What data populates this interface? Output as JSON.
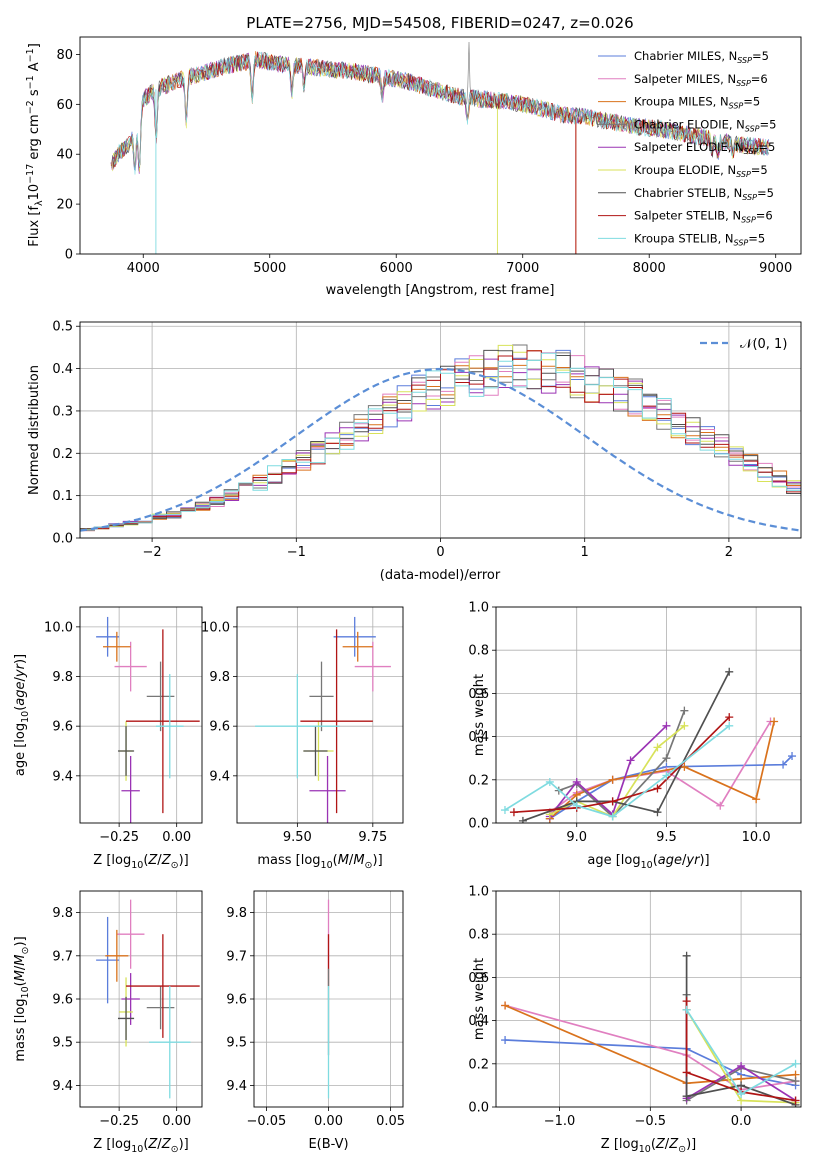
{
  "colors": {
    "chabrier_miles": "#5b7ddb",
    "salpeter_miles": "#e07fc0",
    "kroupa_miles": "#d9721c",
    "chabrier_elodie": "#777777",
    "salpeter_elodie": "#9a33b4",
    "kroupa_elodie": "#d8e25a",
    "chabrier_stelib": "#505050",
    "salpeter_stelib": "#b01515",
    "kroupa_stelib": "#7fdbe0",
    "normal": "#5b8ed6",
    "grid": "#b0b0b0"
  },
  "chart_data": [
    {
      "id": "spectrum",
      "type": "line",
      "title": "PLATE=2756, MJD=54508, FIBERID=0247, z=0.026",
      "xlabel": "wavelength [Angstrom, rest frame]",
      "ylabel": "Flux [f_λ10^-17 erg cm^-2 s^-1 A^-1]",
      "xlim": [
        3500,
        9200
      ],
      "ylim": [
        0,
        87
      ],
      "xticks": [
        4000,
        5000,
        6000,
        7000,
        8000,
        9000
      ],
      "yticks": [
        0,
        20,
        40,
        60,
        80
      ],
      "legend_position": "top-right",
      "legend": [
        {
          "label": "Chabrier MILES, N_SSP=5",
          "color": "#5b7ddb"
        },
        {
          "label": "Salpeter MILES, N_SSP=6",
          "color": "#e07fc0"
        },
        {
          "label": "Kroupa MILES, N_SSP=5",
          "color": "#d9721c"
        },
        {
          "label": "Chabrier ELODIE, N_SSP=5",
          "color": "#777777"
        },
        {
          "label": "Salpeter ELODIE, N_SSP=5",
          "color": "#9a33b4"
        },
        {
          "label": "Kroupa ELODIE, N_SSP=5",
          "color": "#d8e25a"
        },
        {
          "label": "Chabrier STELIB, N_SSP=5",
          "color": "#505050"
        },
        {
          "label": "Salpeter STELIB, N_SSP=6",
          "color": "#b01515"
        },
        {
          "label": "Kroupa STELIB, N_SSP=5",
          "color": "#7fdbe0"
        }
      ],
      "continuum": [
        [
          3740,
          35
        ],
        [
          3800,
          40
        ],
        [
          3900,
          45
        ],
        [
          3970,
          52
        ],
        [
          4000,
          62
        ],
        [
          4100,
          66
        ],
        [
          4300,
          70
        ],
        [
          4500,
          73
        ],
        [
          4700,
          76
        ],
        [
          4900,
          78
        ],
        [
          5100,
          76
        ],
        [
          5300,
          75
        ],
        [
          5500,
          74
        ],
        [
          5700,
          73
        ],
        [
          5900,
          71
        ],
        [
          6100,
          69
        ],
        [
          6300,
          66
        ],
        [
          6500,
          63
        ],
        [
          6700,
          62
        ],
        [
          6900,
          61
        ],
        [
          7100,
          59
        ],
        [
          7300,
          56
        ],
        [
          7500,
          55
        ],
        [
          7700,
          53
        ],
        [
          7900,
          51
        ],
        [
          8100,
          50
        ],
        [
          8300,
          48
        ],
        [
          8500,
          46
        ],
        [
          8700,
          44
        ],
        [
          8900,
          43
        ]
      ]
    },
    {
      "id": "residuals",
      "type": "bar",
      "xlabel": "(data-model)/error",
      "ylabel": "Normed distribution",
      "xlim": [
        -2.5,
        2.5
      ],
      "ylim": [
        0,
        0.51
      ],
      "xticks": [
        -2,
        -1,
        0,
        1,
        2
      ],
      "yticks": [
        0.0,
        0.1,
        0.2,
        0.3,
        0.4,
        0.5
      ],
      "legend_position": "top-right",
      "normal_label": "𝒩(0, 1)",
      "bin_edges_start": -2.5,
      "bin_width": 0.1,
      "reference_hist": [
        0.02,
        0.025,
        0.03,
        0.035,
        0.04,
        0.05,
        0.055,
        0.065,
        0.075,
        0.085,
        0.1,
        0.115,
        0.13,
        0.15,
        0.165,
        0.185,
        0.2,
        0.22,
        0.24,
        0.26,
        0.28,
        0.3,
        0.32,
        0.34,
        0.35,
        0.36,
        0.375,
        0.385,
        0.39,
        0.4,
        0.405,
        0.4,
        0.395,
        0.39,
        0.38,
        0.37,
        0.355,
        0.34,
        0.33,
        0.31,
        0.29,
        0.27,
        0.25,
        0.235,
        0.215,
        0.19,
        0.175,
        0.155,
        0.14,
        0.12,
        0.105,
        0.09,
        0.078,
        0.066,
        0.056,
        0.048,
        0.04,
        0.034,
        0.029,
        0.025
      ]
    },
    {
      "id": "z_age",
      "type": "scatter",
      "xlabel": "Z [log10(Z/Z☉)]",
      "ylabel": "age  [log10(age/yr)]",
      "xlim": [
        -0.42,
        0.11
      ],
      "ylim": [
        9.21,
        10.08
      ],
      "xticks": [
        -0.25,
        0.0
      ],
      "yticks": [
        9.4,
        9.6,
        9.8,
        10.0
      ],
      "points": [
        {
          "x": -0.3,
          "y": 9.96,
          "xerr": 0.05,
          "yerr": 0.08,
          "color": "#5b7ddb"
        },
        {
          "x": -0.2,
          "y": 9.84,
          "xerr": 0.07,
          "yerr": 0.1,
          "color": "#e07fc0"
        },
        {
          "x": -0.26,
          "y": 9.92,
          "xerr": 0.06,
          "yerr": 0.06,
          "color": "#d9721c"
        },
        {
          "x": -0.07,
          "y": 9.72,
          "xerr": 0.06,
          "yerr": 0.14,
          "color": "#777777"
        },
        {
          "x": -0.2,
          "y": 9.34,
          "xerr": 0.04,
          "yerr": 0.14,
          "color": "#9a33b4"
        },
        {
          "x": -0.22,
          "y": 9.5,
          "xerr": 0.03,
          "yerr": 0.12,
          "color": "#d8e25a"
        },
        {
          "x": -0.22,
          "y": 9.5,
          "xerr": 0.035,
          "yerr": 0.1,
          "color": "#505050"
        },
        {
          "x": -0.06,
          "y": 9.62,
          "xerr": 0.16,
          "yerr": 0.37,
          "color": "#b01515"
        },
        {
          "x": -0.03,
          "y": 9.6,
          "xerr": 0.06,
          "yerr": 0.21,
          "color": "#7fdbe0"
        }
      ]
    },
    {
      "id": "mass_age",
      "type": "scatter",
      "xlabel": "mass [log10(M/M☉)]",
      "ylabel": "",
      "xlim": [
        9.3,
        9.85
      ],
      "ylim": [
        9.21,
        10.08
      ],
      "xticks": [
        9.5,
        9.75
      ],
      "yticks": [
        9.4,
        9.6,
        9.8,
        10.0
      ],
      "points": [
        {
          "x": 9.69,
          "y": 9.96,
          "xerr": 0.07,
          "yerr": 0.08,
          "color": "#5b7ddb"
        },
        {
          "x": 9.75,
          "y": 9.84,
          "xerr": 0.06,
          "yerr": 0.1,
          "color": "#e07fc0"
        },
        {
          "x": 9.7,
          "y": 9.92,
          "xerr": 0.05,
          "yerr": 0.06,
          "color": "#d9721c"
        },
        {
          "x": 9.58,
          "y": 9.72,
          "xerr": 0.04,
          "yerr": 0.14,
          "color": "#777777"
        },
        {
          "x": 9.6,
          "y": 9.34,
          "xerr": 0.06,
          "yerr": 0.14,
          "color": "#9a33b4"
        },
        {
          "x": 9.57,
          "y": 9.5,
          "xerr": 0.05,
          "yerr": 0.12,
          "color": "#d8e25a"
        },
        {
          "x": 9.56,
          "y": 9.5,
          "xerr": 0.04,
          "yerr": 0.1,
          "color": "#505050"
        },
        {
          "x": 9.63,
          "y": 9.62,
          "xerr": 0.12,
          "yerr": 0.37,
          "color": "#b01515"
        },
        {
          "x": 9.5,
          "y": 9.6,
          "xerr": 0.14,
          "yerr": 0.21,
          "color": "#7fdbe0"
        }
      ]
    },
    {
      "id": "age_weight",
      "type": "line",
      "xlabel": "age  [log10(age/yr)]",
      "ylabel": "mass weight",
      "xlim": [
        8.55,
        10.25
      ],
      "ylim": [
        0,
        1.0
      ],
      "xticks": [
        9.0,
        9.5,
        10.0
      ],
      "yticks": [
        0.0,
        0.2,
        0.4,
        0.6,
        0.8,
        1.0
      ],
      "series": [
        {
          "color": "#5b7ddb",
          "x": [
            8.85,
            9.0,
            9.2,
            9.5,
            10.15,
            10.2
          ],
          "y": [
            0.02,
            0.1,
            0.2,
            0.26,
            0.27,
            0.31
          ]
        },
        {
          "color": "#e07fc0",
          "x": [
            8.85,
            9.0,
            9.2,
            9.5,
            9.8,
            10.08
          ],
          "y": [
            0.05,
            0.14,
            0.2,
            0.24,
            0.08,
            0.47
          ]
        },
        {
          "color": "#d9721c",
          "x": [
            8.85,
            9.0,
            9.2,
            9.6,
            10.0,
            10.1
          ],
          "y": [
            0.02,
            0.13,
            0.2,
            0.26,
            0.11,
            0.47
          ]
        },
        {
          "color": "#777777",
          "x": [
            8.9,
            9.0,
            9.2,
            9.5,
            9.6
          ],
          "y": [
            0.15,
            0.18,
            0.03,
            0.3,
            0.52
          ]
        },
        {
          "color": "#9a33b4",
          "x": [
            8.85,
            9.0,
            9.2,
            9.3,
            9.5
          ],
          "y": [
            0.03,
            0.19,
            0.04,
            0.29,
            0.45
          ]
        },
        {
          "color": "#d8e25a",
          "x": [
            8.85,
            9.0,
            9.2,
            9.45,
            9.6
          ],
          "y": [
            0.04,
            0.1,
            0.03,
            0.35,
            0.45
          ]
        },
        {
          "color": "#505050",
          "x": [
            8.7,
            9.0,
            9.2,
            9.45,
            9.85
          ],
          "y": [
            0.01,
            0.1,
            0.1,
            0.05,
            0.7
          ]
        },
        {
          "color": "#b01515",
          "x": [
            8.65,
            9.0,
            9.2,
            9.45,
            9.85
          ],
          "y": [
            0.05,
            0.07,
            0.1,
            0.16,
            0.49
          ]
        },
        {
          "color": "#7fdbe0",
          "x": [
            8.6,
            8.85,
            9.0,
            9.2,
            9.5,
            9.85
          ],
          "y": [
            0.06,
            0.19,
            0.08,
            0.03,
            0.22,
            0.45
          ]
        }
      ]
    },
    {
      "id": "z_mass",
      "type": "scatter",
      "xlabel": "Z [log10(Z/Z☉)]",
      "ylabel": "mass [log10(M/M☉)]",
      "xlim": [
        -0.42,
        0.11
      ],
      "ylim": [
        9.35,
        9.85
      ],
      "xticks": [
        -0.25,
        0.0
      ],
      "yticks": [
        9.4,
        9.5,
        9.6,
        9.7,
        9.8
      ],
      "points": [
        {
          "x": -0.3,
          "y": 9.69,
          "xerr": 0.05,
          "yerr": 0.1,
          "color": "#5b7ddb"
        },
        {
          "x": -0.2,
          "y": 9.75,
          "xerr": 0.06,
          "yerr": 0.08,
          "color": "#e07fc0"
        },
        {
          "x": -0.26,
          "y": 9.7,
          "xerr": 0.05,
          "yerr": 0.06,
          "color": "#d9721c"
        },
        {
          "x": -0.07,
          "y": 9.58,
          "xerr": 0.06,
          "yerr": 0.05,
          "color": "#777777"
        },
        {
          "x": -0.2,
          "y": 9.6,
          "xerr": 0.04,
          "yerr": 0.06,
          "color": "#9a33b4"
        },
        {
          "x": -0.22,
          "y": 9.57,
          "xerr": 0.03,
          "yerr": 0.08,
          "color": "#d8e25a"
        },
        {
          "x": -0.22,
          "y": 9.555,
          "xerr": 0.035,
          "yerr": 0.05,
          "color": "#505050"
        },
        {
          "x": -0.06,
          "y": 9.63,
          "xerr": 0.16,
          "yerr": 0.12,
          "color": "#b01515"
        },
        {
          "x": -0.03,
          "y": 9.5,
          "xerr": 0.09,
          "yerr": 0.13,
          "color": "#7fdbe0"
        }
      ]
    },
    {
      "id": "ebv_mass",
      "type": "scatter",
      "xlabel": "E(B-V)",
      "ylabel": "",
      "xlim": [
        -0.06,
        0.06
      ],
      "ylim": [
        9.35,
        9.85
      ],
      "xticks": [
        -0.05,
        0.0,
        0.05
      ],
      "yticks": [
        9.4,
        9.5,
        9.6,
        9.7,
        9.8
      ],
      "points": [
        {
          "x": 0.0,
          "y": 9.75,
          "xerr": 0.0,
          "yerr": 0.08,
          "color": "#e07fc0"
        },
        {
          "x": 0.0,
          "y": 9.69,
          "xerr": 0.0,
          "yerr": 0.06,
          "color": "#b01515"
        },
        {
          "x": 0.0,
          "y": 9.57,
          "xerr": 0.0,
          "yerr": 0.1,
          "color": "#777777"
        },
        {
          "x": 0.0,
          "y": 9.5,
          "xerr": 0.0,
          "yerr": 0.13,
          "color": "#7fdbe0"
        }
      ]
    },
    {
      "id": "z_weight",
      "type": "line",
      "xlabel": "Z [log10(Z/Z☉)]",
      "ylabel": "mass weight",
      "xlim": [
        -1.35,
        0.33
      ],
      "ylim": [
        0,
        1.0
      ],
      "xticks": [
        -1.0,
        -0.5,
        0.0
      ],
      "yticks": [
        0.0,
        0.2,
        0.4,
        0.6,
        0.8,
        1.0
      ],
      "series": [
        {
          "color": "#5b7ddb",
          "x": [
            -1.3,
            -0.3,
            0.0,
            0.3
          ],
          "y": [
            0.31,
            0.27,
            0.15,
            0.1
          ]
        },
        {
          "color": "#e07fc0",
          "x": [
            -1.3,
            -0.3,
            0.0,
            0.3
          ],
          "y": [
            0.47,
            0.24,
            0.08,
            0.12
          ]
        },
        {
          "color": "#d9721c",
          "x": [
            -1.3,
            -0.3,
            0.0,
            0.3
          ],
          "y": [
            0.47,
            0.11,
            0.13,
            0.15
          ]
        },
        {
          "color": "#777777",
          "x": [
            -0.3,
            -0.3,
            0.0,
            0.3
          ],
          "y": [
            0.52,
            0.03,
            0.18,
            0.12
          ]
        },
        {
          "color": "#9a33b4",
          "x": [
            -0.3,
            -0.3,
            0.0,
            0.3
          ],
          "y": [
            0.45,
            0.04,
            0.19,
            0.03
          ]
        },
        {
          "color": "#d8e25a",
          "x": [
            -0.3,
            0.0,
            0.3
          ],
          "y": [
            0.45,
            0.03,
            0.02
          ]
        },
        {
          "color": "#505050",
          "x": [
            -0.3,
            -0.3,
            0.0,
            0.3
          ],
          "y": [
            0.7,
            0.05,
            0.1,
            0.01
          ]
        },
        {
          "color": "#b01515",
          "x": [
            -0.3,
            -0.3,
            0.0,
            0.3
          ],
          "y": [
            0.49,
            0.16,
            0.07,
            0.03
          ]
        },
        {
          "color": "#7fdbe0",
          "x": [
            -0.3,
            0.0,
            0.3
          ],
          "y": [
            0.45,
            0.06,
            0.2
          ]
        }
      ]
    }
  ]
}
